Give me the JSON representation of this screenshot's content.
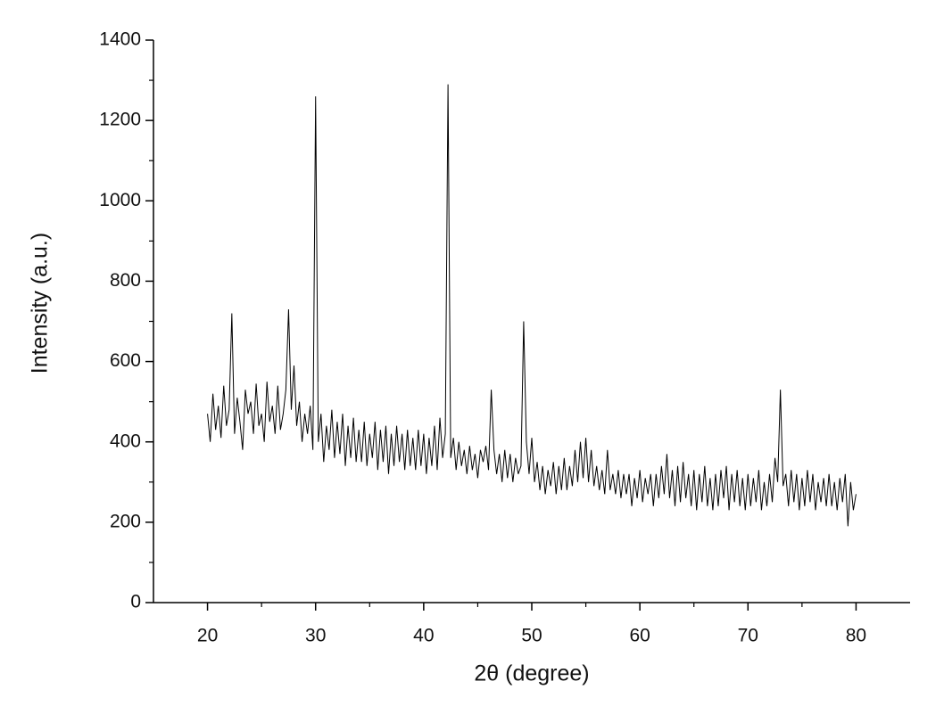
{
  "chart_data": {
    "type": "line",
    "color": "#000000",
    "x_label": "2θ (degree)",
    "y_label": "Intensity (a.u.)",
    "xlim": [
      15,
      85
    ],
    "xticks": [
      20,
      30,
      40,
      50,
      60,
      70,
      80
    ],
    "ylim": [
      0,
      1400
    ],
    "yticks": [
      0,
      200,
      400,
      600,
      800,
      1000,
      1200,
      1400
    ],
    "x": [
      20,
      20.25,
      20.5,
      20.75,
      21,
      21.25,
      21.5,
      21.75,
      22,
      22.25,
      22.5,
      22.75,
      23,
      23.25,
      23.5,
      23.75,
      24,
      24.25,
      24.5,
      24.75,
      25,
      25.25,
      25.5,
      25.75,
      26,
      26.25,
      26.5,
      26.75,
      27,
      27.25,
      27.5,
      27.75,
      28,
      28.25,
      28.5,
      28.75,
      29,
      29.25,
      29.5,
      29.75,
      30,
      30.25,
      30.5,
      30.75,
      31,
      31.25,
      31.5,
      31.75,
      32,
      32.25,
      32.5,
      32.75,
      33,
      33.25,
      33.5,
      33.75,
      34,
      34.25,
      34.5,
      34.75,
      35,
      35.25,
      35.5,
      35.75,
      36,
      36.25,
      36.5,
      36.75,
      37,
      37.25,
      37.5,
      37.75,
      38,
      38.25,
      38.5,
      38.75,
      39,
      39.25,
      39.5,
      39.75,
      40,
      40.25,
      40.5,
      40.75,
      41,
      41.25,
      41.5,
      41.75,
      42,
      42.25,
      42.5,
      42.75,
      43,
      43.25,
      43.5,
      43.75,
      44,
      44.25,
      44.5,
      44.75,
      45,
      45.25,
      45.5,
      45.75,
      46,
      46.25,
      46.5,
      46.75,
      47,
      47.25,
      47.5,
      47.75,
      48,
      48.25,
      48.5,
      48.75,
      49,
      49.25,
      49.5,
      49.75,
      50,
      50.25,
      50.5,
      50.75,
      51,
      51.25,
      51.5,
      51.75,
      52,
      52.25,
      52.5,
      52.75,
      53,
      53.25,
      53.5,
      53.75,
      54,
      54.25,
      54.5,
      54.75,
      55,
      55.25,
      55.5,
      55.75,
      56,
      56.25,
      56.5,
      56.75,
      57,
      57.25,
      57.5,
      57.75,
      58,
      58.25,
      58.5,
      58.75,
      59,
      59.25,
      59.5,
      59.75,
      60,
      60.25,
      60.5,
      60.75,
      61,
      61.25,
      61.5,
      61.75,
      62,
      62.25,
      62.5,
      62.75,
      63,
      63.25,
      63.5,
      63.75,
      64,
      64.25,
      64.5,
      64.75,
      65,
      65.25,
      65.5,
      65.75,
      66,
      66.25,
      66.5,
      66.75,
      67,
      67.25,
      67.5,
      67.75,
      68,
      68.25,
      68.5,
      68.75,
      69,
      69.25,
      69.5,
      69.75,
      70,
      70.25,
      70.5,
      70.75,
      71,
      71.25,
      71.5,
      71.75,
      72,
      72.25,
      72.5,
      72.75,
      73,
      73.25,
      73.5,
      73.75,
      74,
      74.25,
      74.5,
      74.75,
      75,
      75.25,
      75.5,
      75.75,
      76,
      76.25,
      76.5,
      76.75,
      77,
      77.25,
      77.5,
      77.75,
      78,
      78.25,
      78.5,
      78.75,
      79,
      79.25,
      79.5,
      79.75,
      80
    ],
    "values": [
      470,
      400,
      520,
      430,
      490,
      410,
      540,
      440,
      480,
      720,
      420,
      510,
      450,
      380,
      530,
      470,
      500,
      420,
      545,
      440,
      470,
      400,
      550,
      450,
      490,
      420,
      540,
      430,
      470,
      530,
      730,
      480,
      590,
      440,
      500,
      400,
      470,
      420,
      490,
      380,
      1260,
      400,
      470,
      350,
      440,
      380,
      480,
      360,
      450,
      370,
      470,
      340,
      440,
      360,
      460,
      350,
      430,
      350,
      450,
      340,
      420,
      360,
      450,
      330,
      430,
      350,
      440,
      320,
      420,
      340,
      440,
      350,
      420,
      330,
      430,
      340,
      410,
      330,
      430,
      340,
      420,
      320,
      410,
      340,
      440,
      330,
      460,
      360,
      420,
      1290,
      360,
      410,
      330,
      400,
      340,
      380,
      320,
      390,
      330,
      370,
      310,
      380,
      350,
      390,
      330,
      530,
      380,
      320,
      370,
      300,
      380,
      310,
      370,
      300,
      360,
      320,
      340,
      700,
      400,
      320,
      410,
      300,
      350,
      280,
      340,
      270,
      330,
      290,
      350,
      270,
      340,
      280,
      360,
      280,
      340,
      290,
      380,
      300,
      400,
      310,
      410,
      300,
      380,
      290,
      340,
      280,
      330,
      270,
      380,
      280,
      320,
      270,
      330,
      260,
      320,
      270,
      320,
      240,
      310,
      260,
      330,
      250,
      310,
      270,
      320,
      240,
      320,
      260,
      340,
      270,
      370,
      260,
      330,
      240,
      340,
      250,
      350,
      260,
      320,
      240,
      330,
      230,
      320,
      250,
      340,
      240,
      310,
      230,
      320,
      240,
      330,
      260,
      340,
      230,
      320,
      250,
      330,
      240,
      310,
      230,
      320,
      240,
      310,
      250,
      330,
      230,
      300,
      240,
      320,
      250,
      360,
      300,
      530,
      290,
      320,
      240,
      330,
      250,
      320,
      230,
      310,
      240,
      330,
      250,
      320,
      230,
      300,
      250,
      310,
      240,
      320,
      240,
      300,
      230,
      310,
      250,
      320,
      190,
      300,
      230,
      270
    ]
  }
}
